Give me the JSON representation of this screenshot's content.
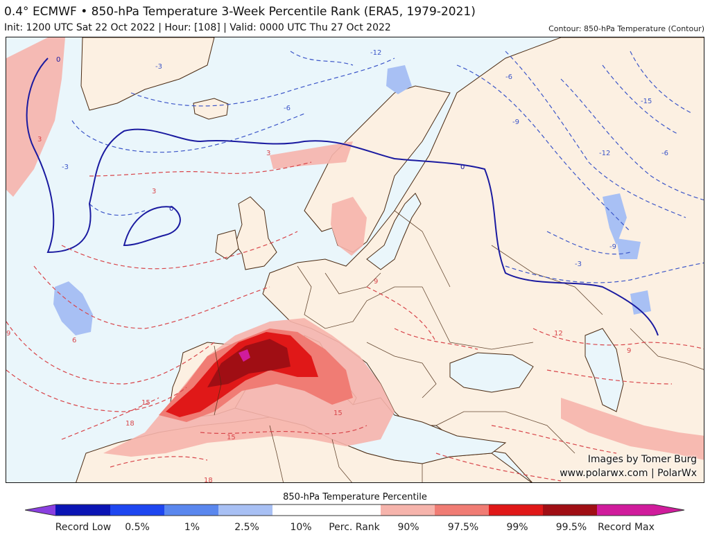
{
  "header": {
    "title": "0.4° ECMWF • 850-hPa Temperature 3-Week Percentile Rank (ERA5, 1979-2021)",
    "subtitle": "Init: 1200 UTC Sat 22 Oct 2022 | Hour: [108] | Valid: 0000 UTC Thu 27 Oct 2022",
    "contour_note": "Contour: 850-hPa Temperature (Contour)"
  },
  "credits": {
    "line1": "Images by Tomer Burg",
    "line2": "www.polarwx.com | PolarWx"
  },
  "colorbar": {
    "title": "850-hPa Temperature Percentile",
    "labels": [
      "Record Low",
      "0.5%",
      "1%",
      "2.5%",
      "10%",
      "Perc. Rank",
      "90%",
      "97.5%",
      "99%",
      "99.5%",
      "Record Max"
    ],
    "colors": {
      "record_low": "#8a3fe0",
      "p0_5": "#0a14b4",
      "p1": "#1e46f0",
      "p2_5": "#5a87ee",
      "p10": "#a8c0f4",
      "neutral": "#ffffff",
      "p90": "#f6b4ac",
      "p97_5": "#f07c74",
      "p99": "#e01818",
      "p99_5": "#a00e14",
      "record_max": "#d01c9c"
    }
  },
  "map_colors": {
    "ocean": "#eaf6fb",
    "land": "#fcf0e2",
    "zero_line": "#1a1aa0",
    "cold_contour": "#3b55c8",
    "warm_contour": "#d8454a",
    "border": "#4a2a12"
  },
  "contour_labels": [
    "0",
    "-3",
    "-6",
    "-9",
    "-12",
    "-15",
    "3",
    "6",
    "9",
    "12",
    "15",
    "18"
  ]
}
